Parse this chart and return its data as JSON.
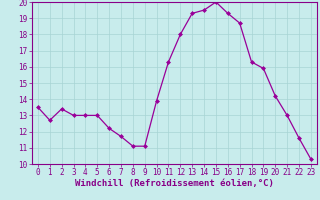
{
  "x": [
    0,
    1,
    2,
    3,
    4,
    5,
    6,
    7,
    8,
    9,
    10,
    11,
    12,
    13,
    14,
    15,
    16,
    17,
    18,
    19,
    20,
    21,
    22,
    23
  ],
  "y": [
    13.5,
    12.7,
    13.4,
    13.0,
    13.0,
    13.0,
    12.2,
    11.7,
    11.1,
    11.1,
    13.9,
    16.3,
    18.0,
    19.3,
    19.5,
    20.0,
    19.3,
    18.7,
    16.3,
    15.9,
    14.2,
    13.0,
    11.6,
    10.3
  ],
  "line_color": "#990099",
  "marker": "D",
  "marker_size": 2.0,
  "bg_color": "#c8ecec",
  "grid_color": "#a8d4d4",
  "xlabel": "Windchill (Refroidissement éolien,°C)",
  "xlim": [
    -0.5,
    23.5
  ],
  "ylim": [
    10,
    20
  ],
  "yticks": [
    10,
    11,
    12,
    13,
    14,
    15,
    16,
    17,
    18,
    19,
    20
  ],
  "xticks": [
    0,
    1,
    2,
    3,
    4,
    5,
    6,
    7,
    8,
    9,
    10,
    11,
    12,
    13,
    14,
    15,
    16,
    17,
    18,
    19,
    20,
    21,
    22,
    23
  ],
  "tick_color": "#880088",
  "tick_fontsize": 5.5,
  "xlabel_fontsize": 6.5,
  "border_color": "#880088",
  "linewidth": 0.9
}
